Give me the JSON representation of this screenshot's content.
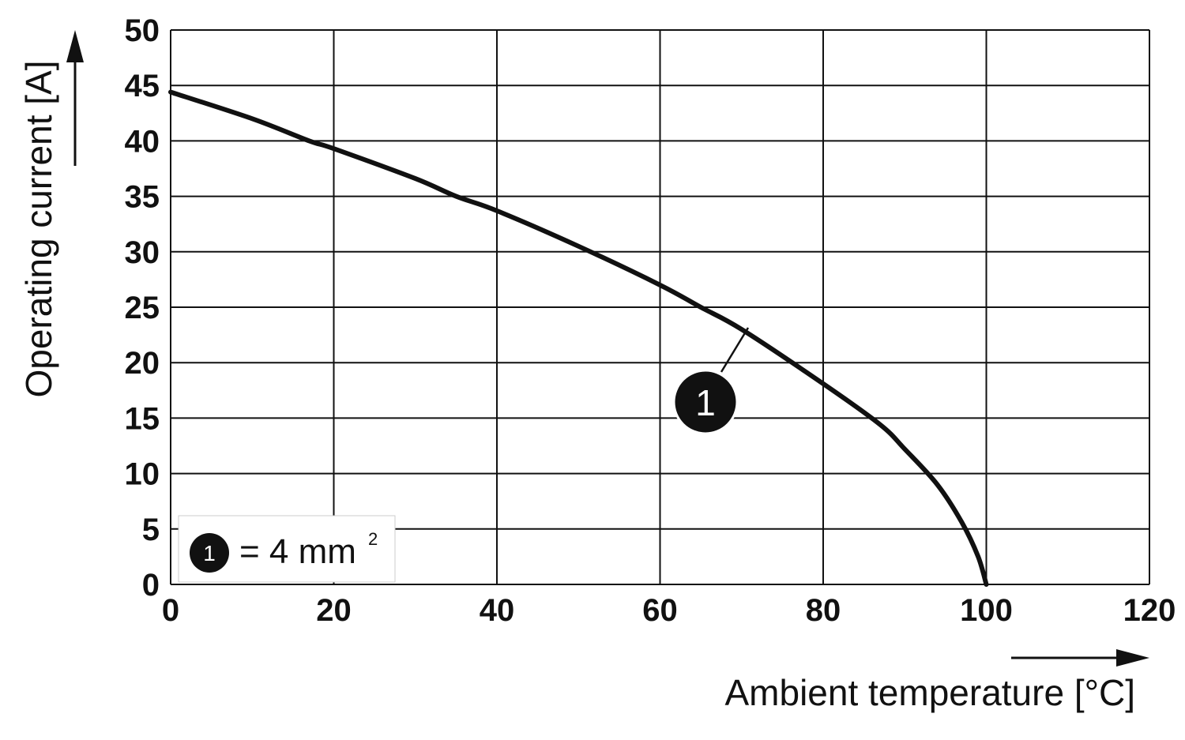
{
  "chart_data": {
    "type": "line",
    "xlabel": "Ambient temperature [°C]",
    "ylabel": "Operating current [A]",
    "xlim": [
      0,
      120
    ],
    "ylim": [
      0,
      50
    ],
    "x_ticks": [
      "0",
      "20",
      "40",
      "60",
      "80",
      "100",
      "120"
    ],
    "y_ticks": [
      "0",
      "5",
      "10",
      "15",
      "20",
      "25",
      "30",
      "35",
      "40",
      "45",
      "50"
    ],
    "grid": true,
    "series": [
      {
        "marker_label": "1",
        "color": "#111111",
        "x": [
          0,
          10,
          17,
          20,
          30,
          35,
          40,
          50,
          60,
          65,
          70,
          80,
          87,
          90,
          94,
          97,
          99,
          100
        ],
        "y": [
          44.4,
          42.0,
          40.0,
          39.3,
          36.6,
          35.0,
          33.7,
          30.5,
          27.0,
          25.0,
          23.0,
          18.1,
          14.4,
          12.2,
          9.0,
          5.6,
          2.5,
          0
        ]
      }
    ],
    "legend": {
      "placement": "bottom-left",
      "marker": "1",
      "text": "= 4 mm",
      "superscript": "2"
    }
  }
}
